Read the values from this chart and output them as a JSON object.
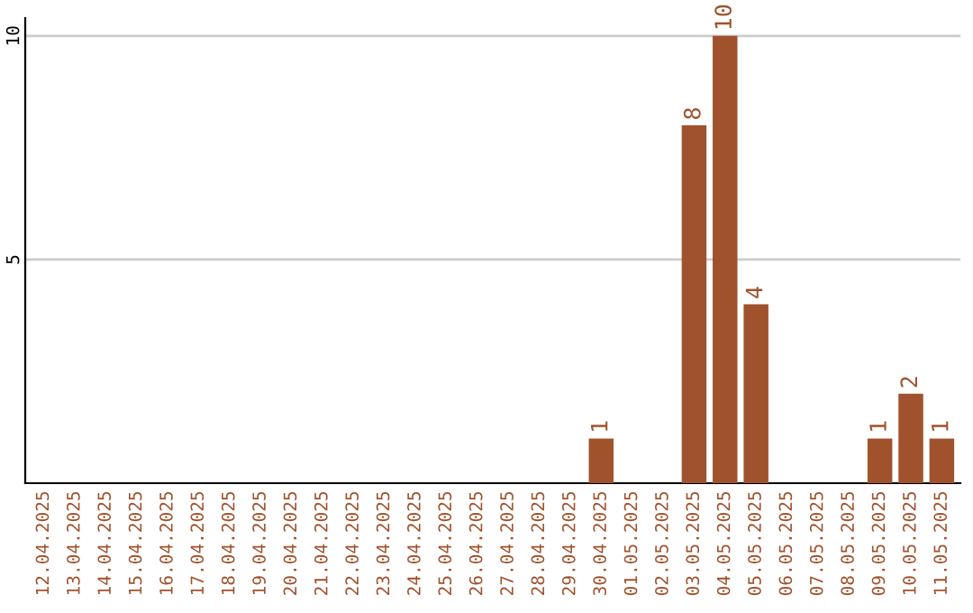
{
  "chart_data": {
    "type": "bar",
    "categories": [
      "12.04.2025",
      "13.04.2025",
      "14.04.2025",
      "15.04.2025",
      "16.04.2025",
      "17.04.2025",
      "18.04.2025",
      "19.04.2025",
      "20.04.2025",
      "21.04.2025",
      "22.04.2025",
      "23.04.2025",
      "24.04.2025",
      "25.04.2025",
      "26.04.2025",
      "27.04.2025",
      "28.04.2025",
      "29.04.2025",
      "30.04.2025",
      "01.05.2025",
      "02.05.2025",
      "03.05.2025",
      "04.05.2025",
      "05.05.2025",
      "06.05.2025",
      "07.05.2025",
      "08.05.2025",
      "09.05.2025",
      "10.05.2025",
      "11.05.2025"
    ],
    "values": [
      0,
      0,
      0,
      0,
      0,
      0,
      0,
      0,
      0,
      0,
      0,
      0,
      0,
      0,
      0,
      0,
      0,
      0,
      1,
      0,
      0,
      8,
      10,
      4,
      0,
      0,
      0,
      1,
      2,
      1
    ],
    "value_labels": [
      null,
      null,
      null,
      null,
      null,
      null,
      null,
      null,
      null,
      null,
      null,
      null,
      null,
      null,
      null,
      null,
      null,
      null,
      "1",
      null,
      null,
      "8",
      "10",
      "4",
      null,
      null,
      null,
      "1",
      "2",
      "1"
    ],
    "color": "#a0522d",
    "ylim": [
      0,
      10.4
    ],
    "yticks": [
      5,
      10
    ],
    "grid": "y",
    "legend": false
  }
}
